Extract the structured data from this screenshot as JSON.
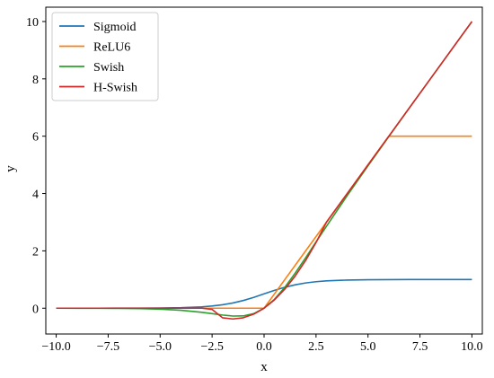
{
  "chart_data": {
    "type": "line",
    "title": "",
    "xlabel": "x",
    "ylabel": "y",
    "xlim": [
      -10.5,
      10.5
    ],
    "ylim": [
      -0.9,
      10.5
    ],
    "xticks": [
      -10.0,
      -7.5,
      -5.0,
      -2.5,
      0.0,
      2.5,
      5.0,
      7.5,
      10.0
    ],
    "xtick_labels": [
      "−10.0",
      "−7.5",
      "−5.0",
      "−2.5",
      "0.0",
      "2.5",
      "5.0",
      "7.5",
      "10.0"
    ],
    "yticks": [
      0,
      2,
      4,
      6,
      8,
      10
    ],
    "ytick_labels": [
      "0",
      "2",
      "4",
      "6",
      "8",
      "10"
    ],
    "grid": false,
    "legend_position": "top-left",
    "x": [
      -10,
      -9,
      -8,
      -7,
      -6,
      -5,
      -4,
      -3,
      -2.5,
      -2,
      -1.5,
      -1,
      -0.5,
      0,
      0.5,
      1,
      1.5,
      2,
      2.5,
      3,
      4,
      5,
      6,
      7,
      8,
      9,
      10
    ],
    "series": [
      {
        "name": "Sigmoid",
        "color": "#1f77b4",
        "values": [
          0.0,
          0.0001,
          0.0003,
          0.0009,
          0.0025,
          0.0067,
          0.018,
          0.0474,
          0.0759,
          0.1192,
          0.1824,
          0.2689,
          0.3775,
          0.5,
          0.6225,
          0.7311,
          0.8176,
          0.8808,
          0.9241,
          0.9526,
          0.982,
          0.9933,
          0.9975,
          0.9991,
          0.9997,
          0.9999,
          1.0
        ]
      },
      {
        "name": "ReLU6",
        "color": "#ff7f0e",
        "values": [
          0,
          0,
          0,
          0,
          0,
          0,
          0,
          0,
          0,
          0,
          0,
          0,
          0,
          0,
          0.5,
          1.0,
          1.5,
          2.0,
          2.5,
          3.0,
          4.0,
          5.0,
          6.0,
          6.0,
          6.0,
          6.0,
          6.0
        ]
      },
      {
        "name": "Swish",
        "color": "#2ca02c",
        "values": [
          0.0,
          -0.0005,
          -0.0027,
          -0.0064,
          -0.0148,
          -0.0335,
          -0.0719,
          -0.1423,
          -0.1897,
          -0.2384,
          -0.2736,
          -0.2689,
          -0.1888,
          0.0,
          0.3112,
          0.7311,
          1.2264,
          1.7616,
          2.3103,
          2.8577,
          3.9281,
          4.9665,
          5.9852,
          6.9936,
          7.9973,
          8.9989,
          9.9995
        ]
      },
      {
        "name": "H-Swish",
        "color": "#d62728",
        "values": [
          0,
          0,
          0,
          0,
          0,
          0,
          0,
          0,
          -0.0417,
          -0.3333,
          -0.375,
          -0.3333,
          -0.2083,
          0.0,
          0.2917,
          0.6667,
          1.125,
          1.6667,
          2.2917,
          3.0,
          4.0,
          5.0,
          6.0,
          7.0,
          8.0,
          9.0,
          10.0
        ]
      }
    ]
  }
}
